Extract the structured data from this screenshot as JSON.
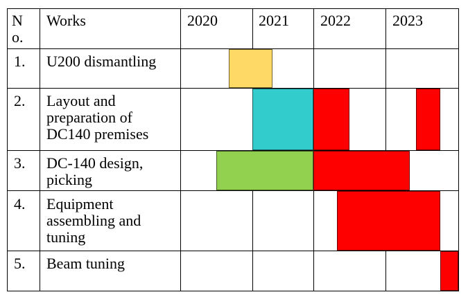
{
  "table": {
    "headers": {
      "no": "N\no.",
      "works": "Works",
      "years": [
        "2020",
        "2021",
        "2022",
        "2023"
      ]
    },
    "rows": [
      {
        "no": "1.",
        "works": "U200 dismantling"
      },
      {
        "no": "2.",
        "works": "Layout and\npreparation of\nDC140 premises"
      },
      {
        "no": "3.",
        "works": "DC-140 design,\npicking"
      },
      {
        "no": "4.",
        "works": "Equipment\nassembling and\ntuning"
      },
      {
        "no": "5.",
        "works": "Beam tuning"
      }
    ]
  },
  "colors": {
    "yellow": "#FFD966",
    "cyan": "#33CCCC",
    "green": "#92D050",
    "red": "#FF0000"
  },
  "gantt": [
    {
      "row": 0,
      "color": "yellow",
      "start": 2020.67,
      "end": 2021.33
    },
    {
      "row": 1,
      "color": "cyan",
      "start": 2021.0,
      "end": 2022.0
    },
    {
      "row": 1,
      "color": "red",
      "start": 2022.0,
      "end": 2022.5
    },
    {
      "row": 1,
      "color": "red",
      "start": 2023.42,
      "end": 2023.75
    },
    {
      "row": 2,
      "color": "green",
      "start": 2020.5,
      "end": 2022.0
    },
    {
      "row": 2,
      "color": "red",
      "start": 2022.0,
      "end": 2023.33
    },
    {
      "row": 3,
      "color": "red",
      "start": 2022.33,
      "end": 2023.75
    },
    {
      "row": 4,
      "color": "red",
      "start": 2023.75,
      "end": 2024.0
    }
  ]
}
